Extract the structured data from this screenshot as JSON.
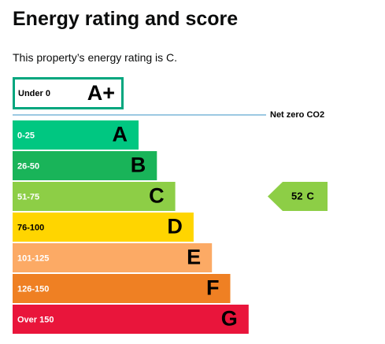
{
  "header": {
    "title": "Energy rating and score"
  },
  "intro": "This property’s energy rating is C.",
  "top_band": {
    "range": "Under 0",
    "letter": "A+",
    "color": "#00a67e"
  },
  "net_zero": "Net zero CO2",
  "bands": [
    {
      "range": "0-25",
      "letter": "A",
      "color": "#00c781"
    },
    {
      "range": "26-50",
      "letter": "B",
      "color": "#19b459"
    },
    {
      "range": "51-75",
      "letter": "C",
      "color": "#8dce46"
    },
    {
      "range": "76-100",
      "letter": "D",
      "color": "#ffd500"
    },
    {
      "range": "101-125",
      "letter": "E",
      "color": "#fcaa65"
    },
    {
      "range": "126-150",
      "letter": "F",
      "color": "#ef8023"
    },
    {
      "range": "Over 150",
      "letter": "G",
      "color": "#e9153b"
    }
  ],
  "current": {
    "score": "52",
    "letter": "C",
    "band_index": 2
  }
}
